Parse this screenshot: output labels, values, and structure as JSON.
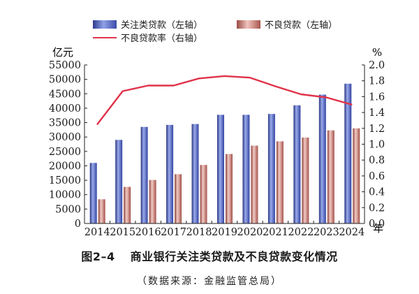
{
  "chart_data": {
    "type": "bar",
    "categories": [
      "2014",
      "2015",
      "2016",
      "2017",
      "2018",
      "2019",
      "2020",
      "2021",
      "2022",
      "2023",
      "2024"
    ],
    "x_unit": "年",
    "series": [
      {
        "name": "关注类贷款（左轴）",
        "axis": "left",
        "chart": "bar",
        "color": "#3a4aa6",
        "values": [
          21000,
          29000,
          33500,
          34200,
          34500,
          37700,
          37700,
          38000,
          41000,
          44700,
          48500
        ]
      },
      {
        "name": "不良贷款（左轴）",
        "axis": "left",
        "chart": "bar",
        "color": "#b05c55",
        "values": [
          8400,
          12700,
          15100,
          17100,
          20300,
          24100,
          27000,
          28500,
          29800,
          32300,
          33000
        ]
      },
      {
        "name": "不良贷款率（右轴）",
        "axis": "right",
        "chart": "line",
        "color": "#e0334a",
        "values": [
          1.25,
          1.67,
          1.74,
          1.74,
          1.83,
          1.86,
          1.84,
          1.73,
          1.63,
          1.59,
          1.5
        ]
      }
    ],
    "y_left": {
      "unit": "亿元",
      "min": 0,
      "max": 55000,
      "step": 5000,
      "ticks": [
        "0",
        "5000",
        "10000",
        "15000",
        "20000",
        "25000",
        "30000",
        "35000",
        "40000",
        "45000",
        "50000",
        "55000"
      ]
    },
    "y_right": {
      "unit": "%",
      "min": 0,
      "max": 2.0,
      "step": 0.2,
      "ticks": [
        "0.0",
        "0.2",
        "0.4",
        "0.6",
        "0.8",
        "1.0",
        "1.2",
        "1.4",
        "1.6",
        "1.8",
        "2.0"
      ]
    },
    "legend_position": "top",
    "grid": false
  },
  "legend": {
    "item1": "关注类贷款（左轴）",
    "item2": "不良贷款（左轴）",
    "item3": "不良贷款率（右轴）"
  },
  "figure": {
    "number": "图2–4",
    "title": "商业银行关注类贷款及不良贷款变化情况",
    "source": "（数据来源：金融监管总局）"
  }
}
